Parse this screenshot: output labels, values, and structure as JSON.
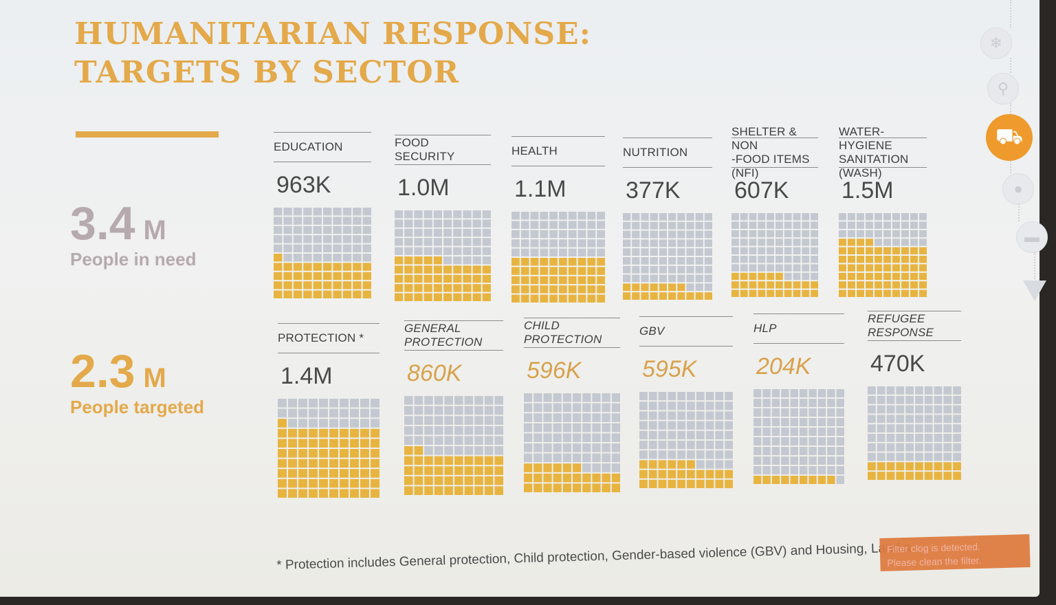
{
  "slide": {
    "title_line1": "HUMANITARIAN RESPONSE:",
    "title_line2": "TARGETS BY SECTOR",
    "people_in_need": {
      "value": "3.4",
      "unit": "M",
      "label": "People in need"
    },
    "people_targeted": {
      "value": "2.3",
      "unit": "M",
      "label": "People targeted"
    },
    "footnote": "* Protection includes General protection, Child protection, Gender-based violence (GBV) and Housing, Land a",
    "notice_line1": "Filter clog is detected.",
    "notice_line2": "Please clean the filter."
  },
  "colors": {
    "accent": "#e3a94a",
    "filled": "#e8b440",
    "empty": "#c4c8d0",
    "nav_active": "#ee9a2c"
  },
  "nav_icons": [
    "snowflake-icon",
    "search-icon",
    "truck-icon",
    "money-bag-icon",
    "vehicle-icon",
    "down-arrow-icon"
  ],
  "chart_data": {
    "type": "waffle",
    "grid": {
      "rows": 10,
      "cols": 10
    },
    "rows": [
      {
        "sectors": [
          {
            "label_line1": "EDUCATION",
            "label_line2": "",
            "value_label": "963K",
            "filled_squares": 41
          },
          {
            "label_line1": "FOOD SECURITY",
            "label_line2": "",
            "value_label": "1.0M",
            "filled_squares": 45
          },
          {
            "label_line1": "HEALTH",
            "label_line2": "",
            "value_label": "1.1M",
            "filled_squares": 50
          },
          {
            "label_line1": "NUTRITION",
            "label_line2": "",
            "value_label": "377K",
            "filled_squares": 17
          },
          {
            "label_line1": "SHELTER & NON",
            "label_line2": "-FOOD ITEMS (NFI)",
            "value_label": "607K",
            "filled_squares": 26
          },
          {
            "label_line1": "WATER-HYGIENE",
            "label_line2": "SANITATION (WASH)",
            "value_label": "1.5M",
            "filled_squares": 64
          }
        ]
      },
      {
        "sectors": [
          {
            "label_line1": "PROTECTION *",
            "label_line2": "",
            "value_label": "1.4M",
            "filled_squares": 71
          },
          {
            "label_line1": "GENERAL",
            "label_line2": "PROTECTION",
            "value_label": "860K",
            "filled_squares": 42
          },
          {
            "label_line1": "CHILD",
            "label_line2": "PROTECTION",
            "value_label": "596K",
            "filled_squares": 26
          },
          {
            "label_line1": "GBV",
            "label_line2": "",
            "value_label": "595K",
            "filled_squares": 26
          },
          {
            "label_line1": "HLP",
            "label_line2": "",
            "value_label": "204K",
            "filled_squares": 9
          },
          {
            "label_line1": "REFUGEE",
            "label_line2": "RESPONSE",
            "value_label": "470K",
            "filled_squares": 20
          }
        ]
      }
    ]
  }
}
